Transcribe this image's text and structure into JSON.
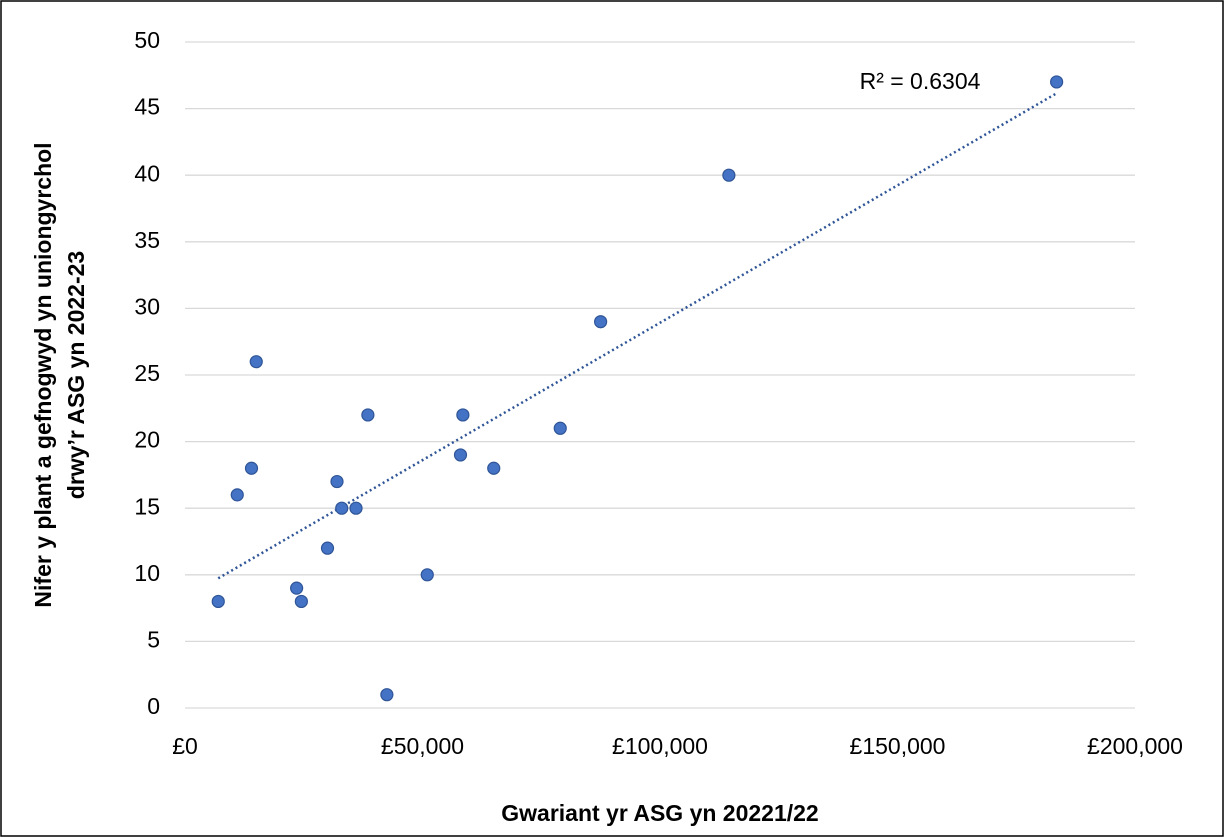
{
  "chart_data": {
    "type": "scatter",
    "x_label": "Gwariant yr ASG yn 20221/22",
    "y_label": [
      "Nifer y plant a gefnogwyd yn uniongyrchol",
      "drwy’r ASG yn 2022-23"
    ],
    "annotation": "R² = 0.6304",
    "x": [
      7000,
      11000,
      14000,
      15000,
      23500,
      24500,
      30000,
      32000,
      33000,
      36000,
      38500,
      42500,
      51000,
      58000,
      58500,
      65000,
      79000,
      87500,
      114500,
      183500
    ],
    "values": [
      8,
      16,
      18,
      26,
      9,
      8,
      12,
      17,
      15,
      15,
      22,
      1,
      10,
      19,
      22,
      18,
      21,
      29,
      40,
      47
    ],
    "color": "#4472c4",
    "trendline": true,
    "trendline_color": "#2f5597",
    "xlim": [
      0,
      200000
    ],
    "xticks": [
      {
        "value": 0,
        "label": "£0"
      },
      {
        "value": 50000,
        "label": "£50,000"
      },
      {
        "value": 100000,
        "label": "£100,000"
      },
      {
        "value": 150000,
        "label": "£150,000"
      },
      {
        "value": 200000,
        "label": "£200,000"
      }
    ],
    "ylim": [
      0,
      50
    ],
    "yticks": [
      0,
      5,
      10,
      15,
      20,
      25,
      30,
      35,
      40,
      45,
      50
    ],
    "grid": true
  }
}
